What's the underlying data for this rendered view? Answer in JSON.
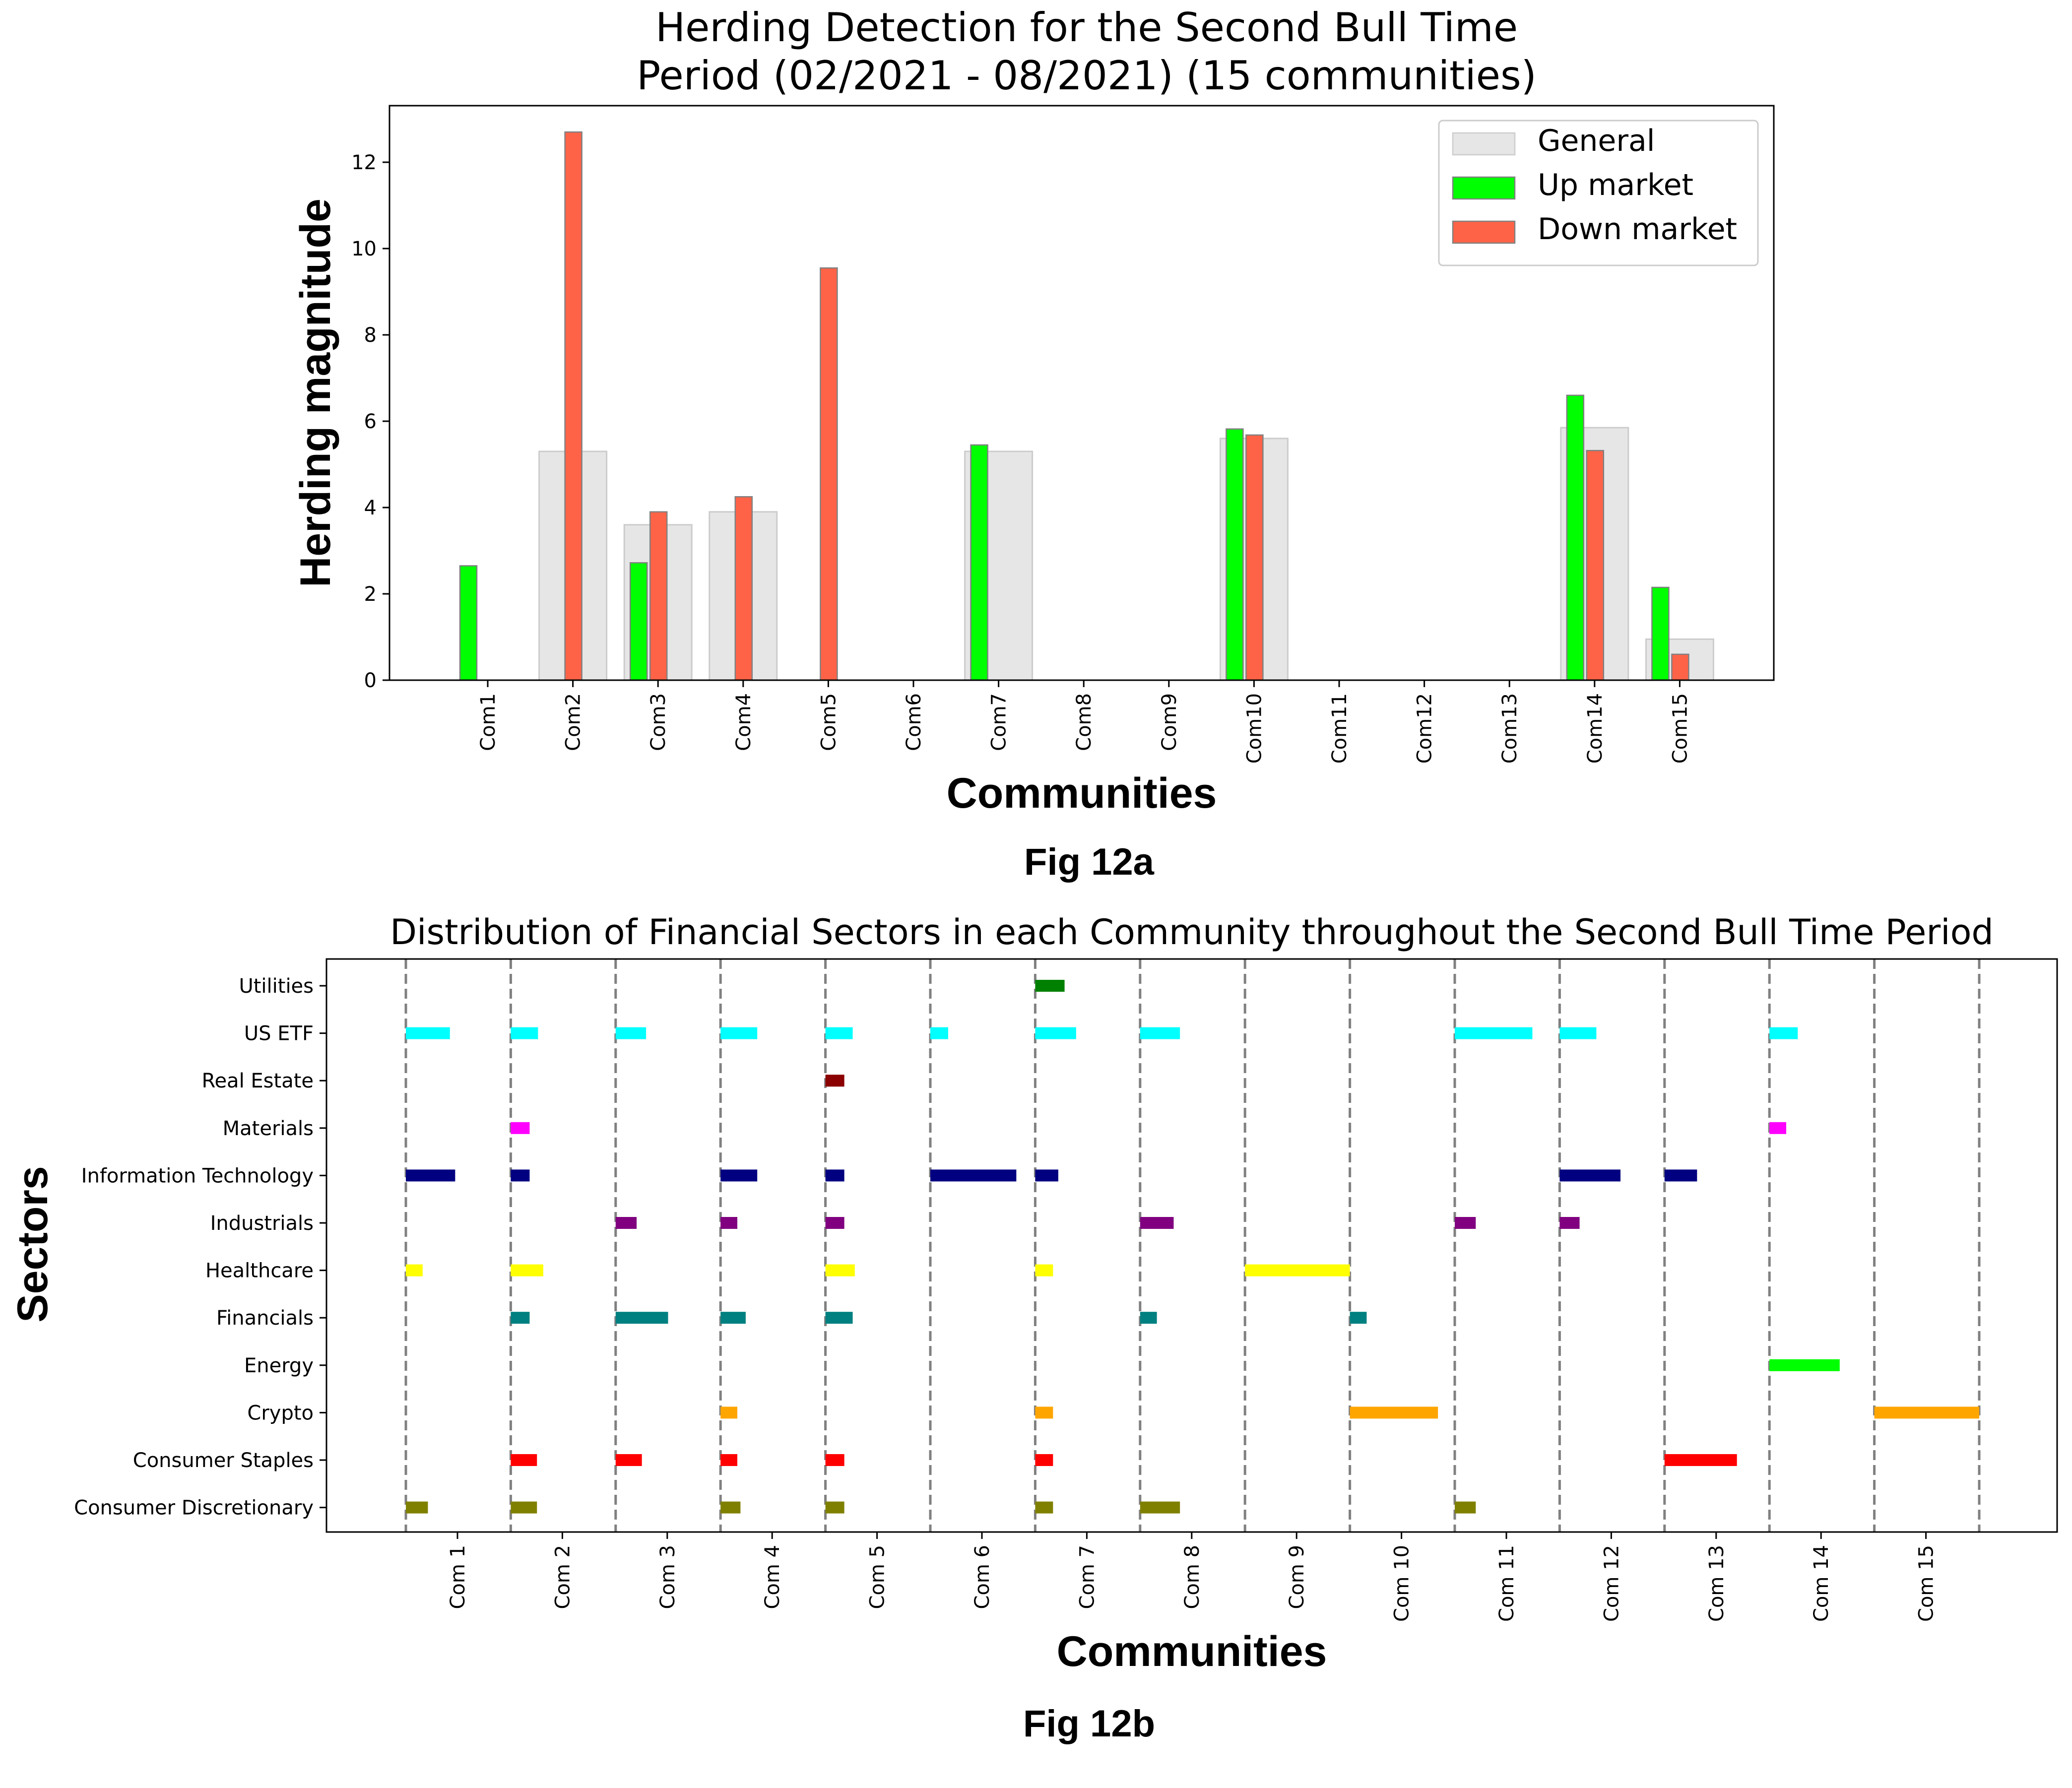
{
  "chart_data": [
    {
      "type": "bar",
      "title": "Herding Detection for the Second Bull Time\nPeriod (02/2021 - 08/2021) (15 communities)",
      "xlabel": "Communities",
      "ylabel": "Herding magnitude",
      "caption": "Fig 12a",
      "categories": [
        "Com1",
        "Com2",
        "Com3",
        "Com4",
        "Com5",
        "Com6",
        "Com7",
        "Com8",
        "Com9",
        "Com10",
        "Com11",
        "Com12",
        "Com13",
        "Com14",
        "Com15"
      ],
      "yticks": [
        "0",
        "2",
        "4",
        "6",
        "8",
        "10",
        "12"
      ],
      "ylim": [
        0,
        13.4
      ],
      "legend_position": "top-right",
      "series": [
        {
          "name": "General",
          "color": "#e6e6e6",
          "values": [
            0,
            5.3,
            3.6,
            3.9,
            0,
            0,
            5.3,
            0,
            0,
            5.6,
            0,
            0,
            0,
            5.85,
            0.95
          ]
        },
        {
          "name": "Up market",
          "color": "#00ff00",
          "values": [
            2.65,
            0,
            2.72,
            0,
            0,
            0,
            5.45,
            0,
            0,
            5.82,
            0,
            0,
            0,
            6.6,
            2.15
          ]
        },
        {
          "name": "Down market",
          "color": "#ff6347",
          "values": [
            0,
            12.7,
            3.9,
            4.25,
            9.55,
            0,
            0,
            0,
            0,
            5.68,
            0,
            0,
            0,
            5.32,
            0.6
          ]
        }
      ]
    },
    {
      "type": "bar",
      "orientation": "horizontal",
      "title": "Distribution of Financial Sectors in each Community throughout the Second Bull Time Period",
      "xlabel": "Communities",
      "ylabel": "Sectors",
      "caption": "Fig 12b",
      "categories": [
        "Com 1",
        "Com 2",
        "Com 3",
        "Com 4",
        "Com 5",
        "Com 6",
        "Com 7",
        "Com 8",
        "Com 9",
        "Com 10",
        "Com 11",
        "Com 12",
        "Com 13",
        "Com 14",
        "Com 15"
      ],
      "sectors": [
        "Utilities",
        "US ETF",
        "Real Estate",
        "Materials",
        "Information Technology",
        "Industrials",
        "Healthcare",
        "Financials",
        "Energy",
        "Crypto",
        "Consumer Staples",
        "Consumer Discretionary"
      ],
      "sector_colors": {
        "Utilities": "#008000",
        "US ETF": "#00ffff",
        "Real Estate": "#8b0000",
        "Materials": "#ff00ff",
        "Information Technology": "#000080",
        "Industrials": "#800080",
        "Healthcare": "#ffff00",
        "Financials": "#008080",
        "Energy": "#00ff00",
        "Crypto": "#ffa500",
        "Consumer Staples": "#ff0000",
        "Consumer Discretionary": "#808000"
      },
      "segments": [
        {
          "community": 1,
          "sector": "US ETF",
          "share": 0.42
        },
        {
          "community": 1,
          "sector": "Information Technology",
          "share": 0.47
        },
        {
          "community": 1,
          "sector": "Healthcare",
          "share": 0.16
        },
        {
          "community": 1,
          "sector": "Consumer Discretionary",
          "share": 0.21
        },
        {
          "community": 2,
          "sector": "US ETF",
          "share": 0.26
        },
        {
          "community": 2,
          "sector": "Materials",
          "share": 0.18
        },
        {
          "community": 2,
          "sector": "Information Technology",
          "share": 0.18
        },
        {
          "community": 2,
          "sector": "Healthcare",
          "share": 0.31
        },
        {
          "community": 2,
          "sector": "Financials",
          "share": 0.18
        },
        {
          "community": 2,
          "sector": "Consumer Staples",
          "share": 0.25
        },
        {
          "community": 2,
          "sector": "Consumer Discretionary",
          "share": 0.25
        },
        {
          "community": 3,
          "sector": "US ETF",
          "share": 0.29
        },
        {
          "community": 3,
          "sector": "Industrials",
          "share": 0.2
        },
        {
          "community": 3,
          "sector": "Financials",
          "share": 0.5
        },
        {
          "community": 3,
          "sector": "Consumer Staples",
          "share": 0.25
        },
        {
          "community": 4,
          "sector": "US ETF",
          "share": 0.35
        },
        {
          "community": 4,
          "sector": "Information Technology",
          "share": 0.35
        },
        {
          "community": 4,
          "sector": "Industrials",
          "share": 0.16
        },
        {
          "community": 4,
          "sector": "Financials",
          "share": 0.24
        },
        {
          "community": 4,
          "sector": "Crypto",
          "share": 0.16
        },
        {
          "community": 4,
          "sector": "Consumer Staples",
          "share": 0.16
        },
        {
          "community": 4,
          "sector": "Consumer Discretionary",
          "share": 0.19
        },
        {
          "community": 5,
          "sector": "US ETF",
          "share": 0.26
        },
        {
          "community": 5,
          "sector": "Real Estate",
          "share": 0.18
        },
        {
          "community": 5,
          "sector": "Information Technology",
          "share": 0.18
        },
        {
          "community": 5,
          "sector": "Industrials",
          "share": 0.18
        },
        {
          "community": 5,
          "sector": "Healthcare",
          "share": 0.28
        },
        {
          "community": 5,
          "sector": "Financials",
          "share": 0.26
        },
        {
          "community": 5,
          "sector": "Consumer Staples",
          "share": 0.18
        },
        {
          "community": 5,
          "sector": "Consumer Discretionary",
          "share": 0.18
        },
        {
          "community": 6,
          "sector": "US ETF",
          "share": 0.17
        },
        {
          "community": 6,
          "sector": "Information Technology",
          "share": 0.82
        },
        {
          "community": 7,
          "sector": "Utilities",
          "share": 0.28
        },
        {
          "community": 7,
          "sector": "US ETF",
          "share": 0.39
        },
        {
          "community": 7,
          "sector": "Information Technology",
          "share": 0.22
        },
        {
          "community": 7,
          "sector": "Healthcare",
          "share": 0.17
        },
        {
          "community": 7,
          "sector": "Crypto",
          "share": 0.17
        },
        {
          "community": 7,
          "sector": "Consumer Staples",
          "share": 0.17
        },
        {
          "community": 7,
          "sector": "Consumer Discretionary",
          "share": 0.17
        },
        {
          "community": 8,
          "sector": "US ETF",
          "share": 0.38
        },
        {
          "community": 8,
          "sector": "Industrials",
          "share": 0.32
        },
        {
          "community": 8,
          "sector": "Financials",
          "share": 0.16
        },
        {
          "community": 8,
          "sector": "Consumer Discretionary",
          "share": 0.38
        },
        {
          "community": 9,
          "sector": "Healthcare",
          "share": 1.0
        },
        {
          "community": 10,
          "sector": "Financials",
          "share": 0.16
        },
        {
          "community": 10,
          "sector": "Crypto",
          "share": 0.84
        },
        {
          "community": 11,
          "sector": "US ETF",
          "share": 0.74
        },
        {
          "community": 11,
          "sector": "Industrials",
          "share": 0.2
        },
        {
          "community": 11,
          "sector": "Consumer Discretionary",
          "share": 0.2
        },
        {
          "community": 12,
          "sector": "US ETF",
          "share": 0.35
        },
        {
          "community": 12,
          "sector": "Information Technology",
          "share": 0.58
        },
        {
          "community": 12,
          "sector": "Industrials",
          "share": 0.19
        },
        {
          "community": 13,
          "sector": "Information Technology",
          "share": 0.31
        },
        {
          "community": 13,
          "sector": "Consumer Staples",
          "share": 0.69
        },
        {
          "community": 14,
          "sector": "US ETF",
          "share": 0.27
        },
        {
          "community": 14,
          "sector": "Materials",
          "share": 0.16
        },
        {
          "community": 14,
          "sector": "Energy",
          "share": 0.67
        },
        {
          "community": 15,
          "sector": "Crypto",
          "share": 1.0
        }
      ]
    }
  ]
}
